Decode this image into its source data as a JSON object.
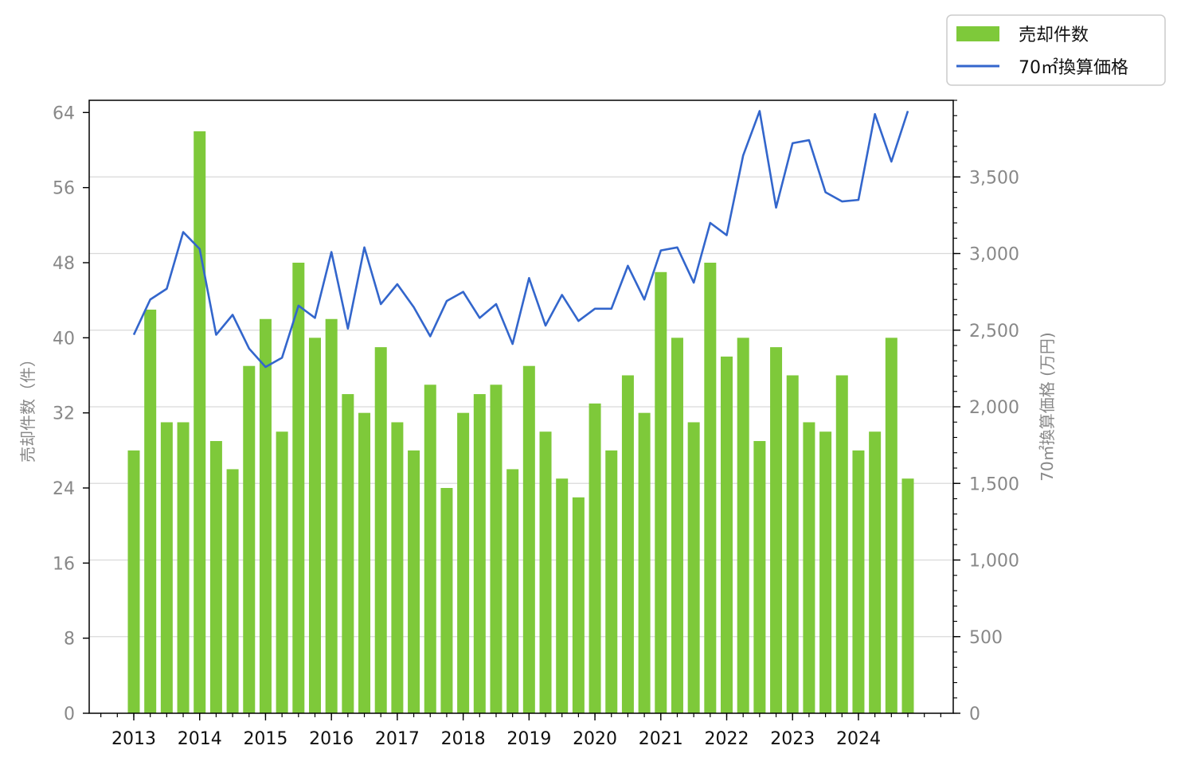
{
  "colors": {
    "bars": "#7ec93a",
    "line": "#3366cc",
    "grid": "#d9d9d9",
    "axis_label": "#888888"
  },
  "chart_data": {
    "type": "bar",
    "grid": "horizontal",
    "legend_position": "top-right, outside plot",
    "x_tick_labels": [
      "2013",
      "2014",
      "2015",
      "2016",
      "2017",
      "2018",
      "2019",
      "2020",
      "2021",
      "2022",
      "2023",
      "2024"
    ],
    "x_ticks_per_year": 4,
    "y_left": {
      "label": "売却件数（件）",
      "range": [
        0,
        65.3
      ],
      "ticks": [
        0,
        8,
        16,
        24,
        32,
        40,
        48,
        56,
        64
      ],
      "tick_labels": [
        "0",
        "8",
        "16",
        "24",
        "32",
        "40",
        "48",
        "56",
        "64"
      ]
    },
    "y_right": {
      "label": "70㎡換算価格 (万円)",
      "range": [
        0,
        4000
      ],
      "ticks": [
        0,
        500,
        1000,
        1500,
        2000,
        2500,
        3000,
        3500
      ],
      "tick_labels": [
        "0",
        "500",
        "1,000",
        "1,500",
        "2,000",
        "2,500",
        "3,000",
        "3,500"
      ]
    },
    "series": [
      {
        "name": "売却件数",
        "kind": "bar",
        "axis": "left",
        "values": [
          28,
          43,
          31,
          31,
          62,
          29,
          26,
          37,
          42,
          30,
          48,
          40,
          42,
          34,
          32,
          39,
          31,
          28,
          35,
          24,
          32,
          34,
          35,
          26,
          37,
          30,
          25,
          23,
          33,
          28,
          36,
          32,
          47,
          40,
          31,
          48,
          38,
          40,
          29,
          39,
          36,
          31,
          30,
          36,
          28,
          30,
          40,
          25
        ]
      },
      {
        "name": "70㎡換算価格",
        "kind": "line",
        "axis": "right",
        "values": [
          2470,
          2700,
          2770,
          3140,
          3030,
          2470,
          2600,
          2380,
          2260,
          2320,
          2660,
          2580,
          3010,
          2510,
          3040,
          2670,
          2800,
          2650,
          2460,
          2690,
          2750,
          2580,
          2670,
          2410,
          2840,
          2530,
          2730,
          2560,
          2640,
          2640,
          2920,
          2700,
          3020,
          3040,
          2810,
          3200,
          3120,
          3640,
          3930,
          3300,
          3720,
          3740,
          3400,
          3340,
          3350,
          3910,
          3600,
          3930
        ]
      }
    ]
  }
}
